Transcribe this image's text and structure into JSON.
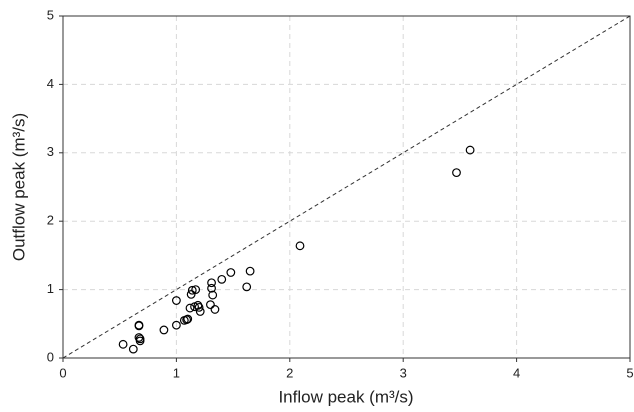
{
  "chart_data": {
    "type": "scatter",
    "x_label": "Inflow peak (m³/s)",
    "y_label": "Outflow peak (m³/s)",
    "x": [
      0.53,
      0.62,
      0.67,
      0.67,
      0.67,
      0.68,
      0.68,
      0.89,
      1.0,
      1.0,
      1.07,
      1.09,
      1.1,
      1.12,
      1.13,
      1.14,
      1.16,
      1.17,
      1.19,
      1.2,
      1.21,
      1.3,
      1.31,
      1.31,
      1.32,
      1.34,
      1.4,
      1.48,
      1.62,
      1.65,
      2.09,
      3.47,
      3.59
    ],
    "values": [
      0.2,
      0.13,
      0.48,
      0.47,
      0.3,
      0.25,
      0.28,
      0.41,
      0.84,
      0.48,
      0.55,
      0.56,
      0.57,
      0.73,
      0.93,
      0.99,
      0.75,
      1.0,
      0.77,
      0.74,
      0.68,
      0.78,
      1.1,
      1.02,
      0.92,
      0.71,
      1.15,
      1.25,
      1.04,
      1.27,
      1.64,
      2.71,
      3.04
    ],
    "color": "#000000",
    "xlim": [
      0,
      5
    ],
    "ylim": [
      0,
      5
    ],
    "xticks": [
      0,
      1,
      2,
      3,
      4,
      5
    ],
    "yticks": [
      0,
      1,
      2,
      3,
      4,
      5
    ],
    "grid": true,
    "identity_line": true
  }
}
